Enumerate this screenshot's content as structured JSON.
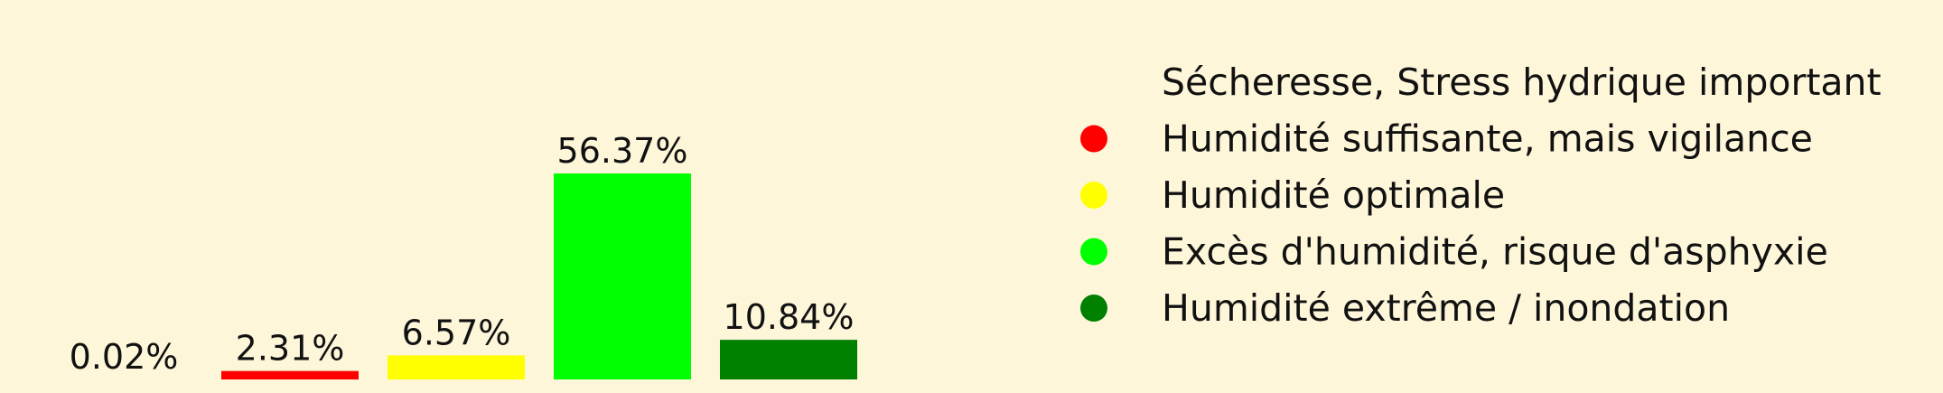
{
  "chart_data": {
    "type": "bar",
    "categories": [
      "Sécheresse, Stress hydrique important",
      "Humidité suffisante, mais vigilance",
      "Humidité optimale",
      "Excès d'humidité, risque d'asphyxie",
      "Humidité extrême / inondation"
    ],
    "values": [
      0.02,
      2.31,
      6.57,
      56.37,
      10.84
    ],
    "data_labels": [
      "0.02%",
      "2.31%",
      "6.57%",
      "56.37%",
      "10.84%"
    ],
    "colors": [
      "#fdf6d9",
      "#ff0000",
      "#ffff00",
      "#00ff00",
      "#008000"
    ],
    "legend": {
      "placement": "right",
      "entries": [
        "Sécheresse, Stress hydrique important",
        "Humidité suffisante, mais vigilance",
        "Humidité optimale",
        "Excès d'humidité, risque d'asphyxie",
        "Humidité extrême / inondation"
      ]
    },
    "title": "",
    "xlabel": "",
    "ylabel": "",
    "ylim": [
      0,
      60
    ],
    "grid": false,
    "axes_visible": false
  }
}
